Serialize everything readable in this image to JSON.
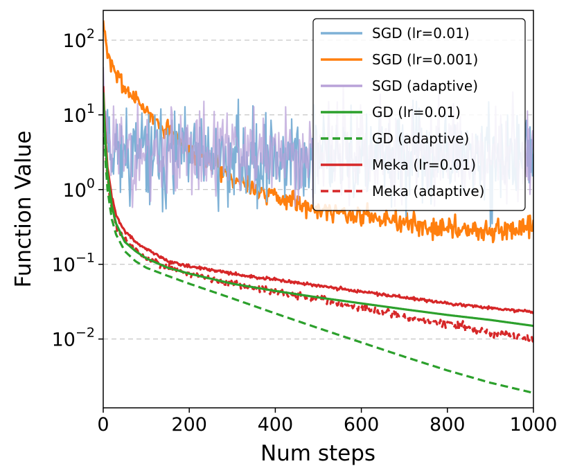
{
  "chart_data": {
    "type": "line",
    "title": "",
    "xlabel": "Num steps",
    "ylabel": "Function Value",
    "xscale": "linear",
    "yscale": "log",
    "xlim": [
      0,
      1000
    ],
    "ylim": [
      0.0012,
      250
    ],
    "x_ticks": [
      {
        "value": 0,
        "label": "0"
      },
      {
        "value": 200,
        "label": "200"
      },
      {
        "value": 400,
        "label": "400"
      },
      {
        "value": 600,
        "label": "600"
      },
      {
        "value": 800,
        "label": "800"
      },
      {
        "value": 1000,
        "label": "1000"
      }
    ],
    "y_ticks": [
      {
        "value": 100,
        "base": "10",
        "exponent": "2"
      },
      {
        "value": 10,
        "base": "10",
        "exponent": "1"
      },
      {
        "value": 1,
        "base": "10",
        "exponent": "0"
      },
      {
        "value": 0.1,
        "base": "10",
        "exponent": "−1"
      },
      {
        "value": 0.01,
        "base": "10",
        "exponent": "−2"
      }
    ],
    "grid": "y-major-dashed",
    "legend_position": "top-right",
    "series": [
      {
        "name": "SGD (lr=0.01)",
        "color": "#7eb1d6",
        "style": "solid",
        "noisy": true,
        "seed": 11,
        "noise_amp": 0.3,
        "x": [
          0,
          5,
          10,
          20,
          40,
          60,
          100,
          200,
          400,
          600,
          800,
          1000
        ],
        "y": [
          30,
          12,
          6,
          4,
          3.2,
          3,
          2.8,
          2.6,
          2.6,
          2.6,
          2.6,
          2.6
        ]
      },
      {
        "name": "SGD (lr=0.001)",
        "color": "#ff7f0e",
        "style": "solid",
        "noisy": true,
        "seed": 7,
        "noise_amp": 0.07,
        "x": [
          0,
          10,
          20,
          40,
          60,
          80,
          100,
          150,
          200,
          250,
          300,
          400,
          500,
          600,
          700,
          800,
          900,
          1000
        ],
        "y": [
          160,
          70,
          45,
          28,
          20,
          15,
          11.5,
          6.0,
          3.5,
          2.3,
          1.5,
          0.8,
          0.55,
          0.45,
          0.36,
          0.3,
          0.28,
          0.3
        ]
      },
      {
        "name": "SGD (adaptive)",
        "color": "#b9a2d8",
        "style": "solid",
        "noisy": true,
        "seed": 23,
        "noise_amp": 0.3,
        "x": [
          0,
          5,
          10,
          20,
          40,
          60,
          100,
          200,
          400,
          600,
          800,
          1000
        ],
        "y": [
          35,
          14,
          7,
          4.5,
          3.5,
          3.3,
          3.2,
          3.1,
          3.0,
          3.1,
          3.2,
          3.3
        ]
      },
      {
        "name": "GD (lr=0.01)",
        "color": "#2ca02c",
        "style": "solid",
        "noisy": false,
        "x": [
          0,
          5,
          10,
          20,
          30,
          50,
          75,
          100,
          150,
          200,
          300,
          400,
          500,
          600,
          700,
          800,
          900,
          1000
        ],
        "y": [
          20,
          4.0,
          1.6,
          0.6,
          0.35,
          0.2,
          0.15,
          0.12,
          0.09,
          0.075,
          0.055,
          0.044,
          0.036,
          0.03,
          0.025,
          0.021,
          0.018,
          0.015
        ]
      },
      {
        "name": "GD (adaptive)",
        "color": "#2ca02c",
        "style": "dashed",
        "noisy": false,
        "x": [
          0,
          5,
          10,
          20,
          30,
          50,
          75,
          100,
          150,
          200,
          300,
          400,
          500,
          600,
          700,
          800,
          900,
          1000
        ],
        "y": [
          15,
          2.5,
          1.0,
          0.4,
          0.25,
          0.15,
          0.11,
          0.09,
          0.07,
          0.055,
          0.035,
          0.022,
          0.014,
          0.009,
          0.0058,
          0.0038,
          0.0026,
          0.0019
        ]
      },
      {
        "name": "Meka (lr=0.01)",
        "color": "#d62728",
        "style": "solid",
        "noisy": true,
        "seed": 31,
        "noise_amp": 0.01,
        "x": [
          0,
          5,
          10,
          20,
          30,
          50,
          75,
          100,
          150,
          200,
          300,
          400,
          500,
          600,
          700,
          800,
          900,
          1000
        ],
        "y": [
          25,
          5.0,
          2.0,
          0.8,
          0.45,
          0.28,
          0.2,
          0.16,
          0.11,
          0.095,
          0.075,
          0.062,
          0.052,
          0.043,
          0.036,
          0.03,
          0.026,
          0.023
        ]
      },
      {
        "name": "Meka (adaptive)",
        "color": "#d62728",
        "style": "dashed",
        "noisy": true,
        "seed": 43,
        "noise_amp": 0.025,
        "x": [
          0,
          5,
          10,
          20,
          30,
          50,
          75,
          100,
          150,
          200,
          300,
          400,
          500,
          600,
          700,
          800,
          900,
          1000
        ],
        "y": [
          18,
          3.5,
          1.4,
          0.55,
          0.33,
          0.21,
          0.16,
          0.12,
          0.09,
          0.075,
          0.055,
          0.043,
          0.034,
          0.026,
          0.02,
          0.016,
          0.012,
          0.01
        ]
      }
    ]
  }
}
